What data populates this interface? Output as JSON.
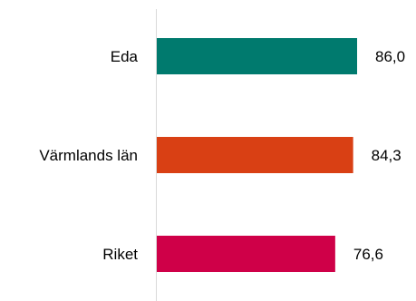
{
  "chart_data": {
    "type": "bar",
    "orientation": "horizontal",
    "categories": [
      "Eda",
      "Värmlands län",
      "Riket"
    ],
    "values": [
      86.0,
      84.3,
      76.6
    ],
    "value_labels": [
      "86,0",
      "84,3",
      "76,6"
    ],
    "bar_colors": [
      "#007a6e",
      "#d94014",
      "#cf0048"
    ],
    "axis_color": "#d9d9d9",
    "xlim": [
      0,
      100
    ],
    "title": "",
    "xlabel": "",
    "ylabel": "",
    "grid": false,
    "legend": "none"
  }
}
